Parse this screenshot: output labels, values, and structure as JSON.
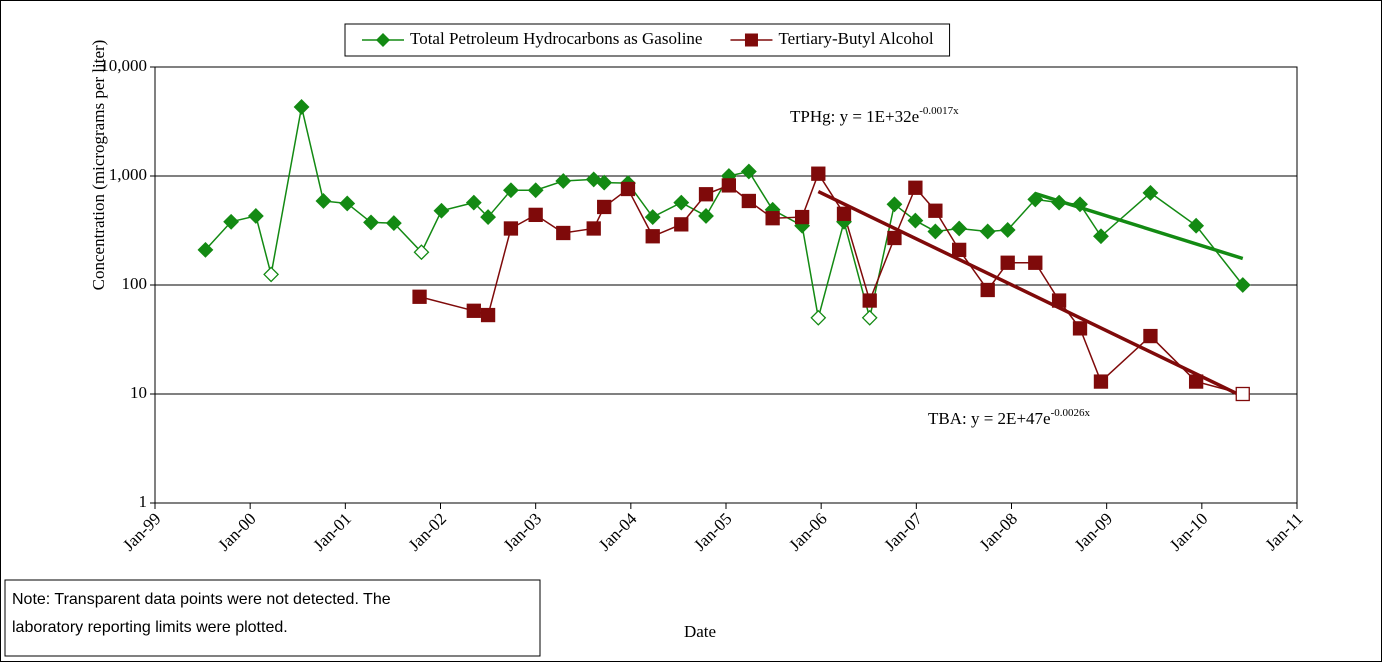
{
  "chart_data": {
    "type": "line",
    "x_label": "Date",
    "y_label": "Concentration (micrograms per liter)",
    "log_y": true,
    "grid": true,
    "legend": "top",
    "ylim": [
      1,
      10000
    ],
    "yticks": [
      1,
      10,
      100,
      {
        "value": 1000,
        "label": "1,000"
      },
      {
        "value": 10000,
        "label": "10,000"
      }
    ],
    "xlim": [
      1999,
      2011
    ],
    "xticks": [
      {
        "value": 1999,
        "label": "Jan-99"
      },
      {
        "value": 2000,
        "label": "Jan-00"
      },
      {
        "value": 2001,
        "label": "Jan-01"
      },
      {
        "value": 2002,
        "label": "Jan-02"
      },
      {
        "value": 2003,
        "label": "Jan-03"
      },
      {
        "value": 2004,
        "label": "Jan-04"
      },
      {
        "value": 2005,
        "label": "Jan-05"
      },
      {
        "value": 2006,
        "label": "Jan-06"
      },
      {
        "value": 2007,
        "label": "Jan-07"
      },
      {
        "value": 2008,
        "label": "Jan-08"
      },
      {
        "value": 2009,
        "label": "Jan-09"
      },
      {
        "value": 2010,
        "label": "Jan-10"
      },
      {
        "value": 2011,
        "label": "Jan-11"
      }
    ],
    "series": [
      {
        "name": "Total Petroleum Hydrocarbons as Gasoline",
        "color": "#138a13",
        "marker": "diamond",
        "x": [
          1999.53,
          1999.8,
          2000.06,
          2000.22,
          2000.54,
          2000.77,
          2001.02,
          2001.27,
          2001.51,
          2001.8,
          2002.01,
          2002.35,
          2002.5,
          2002.74,
          2003.0,
          2003.29,
          2003.61,
          2003.72,
          2003.97,
          2004.23,
          2004.53,
          2004.79,
          2005.03,
          2005.24,
          2005.49,
          2005.8,
          2005.97,
          2006.24,
          2006.51,
          2006.77,
          2006.99,
          2007.2,
          2007.45,
          2007.75,
          2007.96,
          2008.25,
          2008.5,
          2008.72,
          2008.94,
          2009.46,
          2009.94,
          2010.43
        ],
        "values": [
          210,
          380,
          430,
          125,
          4300,
          590,
          560,
          375,
          370,
          200,
          480,
          570,
          420,
          740,
          740,
          900,
          930,
          870,
          860,
          420,
          570,
          430,
          1000,
          1100,
          490,
          350,
          50,
          380,
          50,
          550,
          390,
          310,
          330,
          310,
          320,
          610,
          570,
          550,
          280,
          700,
          350,
          100
        ],
        "open_points": [
          3,
          9,
          26,
          28
        ]
      },
      {
        "name": "Tertiary-Butyl Alcohol",
        "color": "#7f0a0a",
        "marker": "square",
        "x": [
          2001.78,
          2002.35,
          2002.5,
          2002.74,
          2003.0,
          2003.29,
          2003.61,
          2003.72,
          2003.97,
          2004.23,
          2004.53,
          2004.79,
          2005.03,
          2005.24,
          2005.49,
          2005.8,
          2005.97,
          2006.24,
          2006.51,
          2006.77,
          2006.99,
          2007.2,
          2007.45,
          2007.75,
          2007.96,
          2008.25,
          2008.5,
          2008.72,
          2008.94,
          2009.46,
          2009.94,
          2010.43
        ],
        "values": [
          78,
          58,
          53,
          330,
          440,
          300,
          330,
          520,
          760,
          280,
          360,
          680,
          820,
          590,
          410,
          420,
          1050,
          450,
          72,
          270,
          780,
          480,
          210,
          90,
          160,
          160,
          72,
          40,
          13,
          34,
          13,
          10
        ],
        "open_points": [
          31
        ]
      }
    ],
    "trendlines": [
      {
        "color": "#138a13",
        "x": [
          2008.25,
          2010.43
        ],
        "values": [
          690,
          175
        ],
        "label": "TPHg: y = 1E+32e",
        "exponent": "-0.0017x"
      },
      {
        "color": "#7f0a0a",
        "x": [
          2005.97,
          2010.43
        ],
        "values": [
          720,
          9.5
        ],
        "label": "TBA: y = 2E+47e",
        "exponent": "-0.0026x"
      }
    ],
    "note": [
      "Note: Transparent data points were not detected.  The",
      "laboratory reporting limits were plotted."
    ]
  }
}
